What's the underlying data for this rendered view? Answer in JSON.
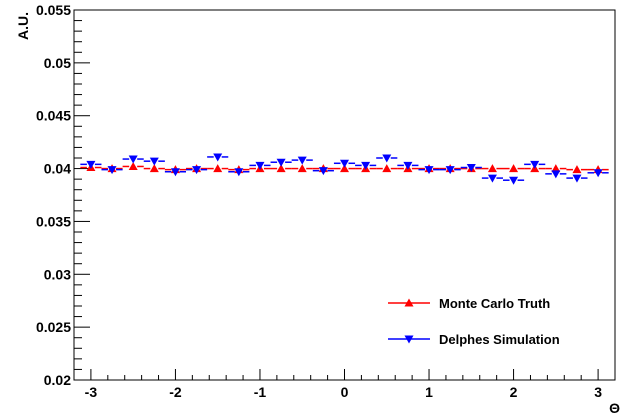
{
  "chart_data": {
    "type": "scatter",
    "title": "",
    "xlabel": "Θ",
    "ylabel": "A.U.",
    "xlim": [
      -3.2,
      3.2
    ],
    "ylim": [
      0.02,
      0.055
    ],
    "grid": false,
    "legend_placement": "bottom-right",
    "x_ticks": [
      -3,
      -2,
      -1,
      0,
      1,
      2,
      3
    ],
    "x_tick_labels": [
      "-3",
      "-2",
      "-1",
      "0",
      "1",
      "2",
      "3"
    ],
    "y_ticks": [
      0.02,
      0.025,
      0.03,
      0.035,
      0.04,
      0.045,
      0.05,
      0.055
    ],
    "y_tick_labels": [
      "0.02",
      "0.025",
      "0.03",
      "0.035",
      "0.04",
      "0.045",
      "0.05",
      "0.055"
    ],
    "x": [
      -3.0,
      -2.75,
      -2.5,
      -2.25,
      -2.0,
      -1.75,
      -1.5,
      -1.25,
      -1.0,
      -0.75,
      -0.5,
      -0.25,
      0.0,
      0.25,
      0.5,
      0.75,
      1.0,
      1.25,
      1.5,
      1.75,
      2.0,
      2.25,
      2.5,
      2.75,
      3.0
    ],
    "series": [
      {
        "name": "Monte Carlo Truth",
        "color": "#ff0000",
        "marker": "triangle-up",
        "values": [
          0.0401,
          0.04,
          0.0402,
          0.04,
          0.0399,
          0.04,
          0.04,
          0.0399,
          0.04,
          0.04,
          0.04,
          0.04,
          0.04,
          0.04,
          0.04,
          0.04,
          0.04,
          0.04,
          0.04,
          0.04,
          0.04,
          0.04,
          0.04,
          0.0399,
          0.0399
        ]
      },
      {
        "name": "Delphes Simulation",
        "color": "#0000ff",
        "marker": "triangle-down",
        "values": [
          0.0404,
          0.0399,
          0.0409,
          0.0407,
          0.0397,
          0.0399,
          0.0411,
          0.0397,
          0.0403,
          0.0406,
          0.0408,
          0.0398,
          0.0405,
          0.0403,
          0.041,
          0.0403,
          0.0399,
          0.0399,
          0.0401,
          0.0391,
          0.0389,
          0.0404,
          0.0395,
          0.0391,
          0.0396
        ]
      }
    ]
  }
}
